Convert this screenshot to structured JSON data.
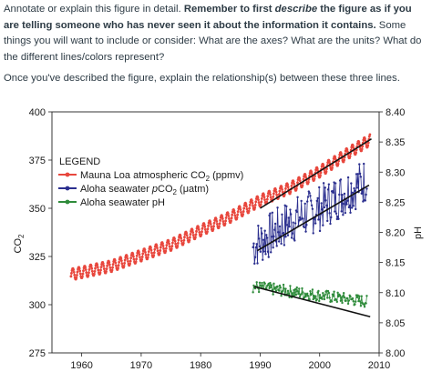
{
  "prompt": {
    "p1_a": "Annotate or explain this figure in detail. ",
    "p1_b1": "Remember to first ",
    "p1_b2": "describe",
    "p1_b3": " the figure as if you are telling someone who has never seen it about the information it contains.",
    "p1_c": " Some things you will want to include or consider:  What are the axes? What are the units? What do the different lines/colors represent?",
    "p2": "Once you've described the figure, explain the relationship(s) between these three lines."
  },
  "chart_data": {
    "type": "line",
    "title": "",
    "xlabel": "",
    "ylabel_left_main": "CO",
    "ylabel_left_sub": "2",
    "ylabel_right": "pH",
    "xlim": [
      1955,
      2010
    ],
    "ylim_left": [
      275,
      400
    ],
    "ylim_right": [
      8.0,
      8.4
    ],
    "x_ticks": [
      "1960",
      "1970",
      "1980",
      "1990",
      "2000",
      "2010"
    ],
    "y_left_ticks": [
      "275",
      "300",
      "325",
      "350",
      "375",
      "400"
    ],
    "y_right_ticks": [
      "8.00",
      "8.05",
      "8.10",
      "8.15",
      "8.20",
      "8.25",
      "8.30",
      "8.35",
      "8.40"
    ],
    "legend": {
      "title": "LEGEND",
      "placement": "upper-left",
      "entries": [
        {
          "pre": "Mauna Loa atmospheric CO",
          "sub": "2",
          "post": " (ppmv)"
        },
        {
          "pre": "Aloha seawater ",
          "ital": "p",
          "mid": "CO",
          "sub": "2",
          "post": " (μatm)"
        },
        {
          "pre": "Aloha seawater pH"
        }
      ]
    },
    "colors": {
      "mauna_loa": "#e8473d",
      "aloha_pco2": "#2b2f8f",
      "aloha_ph": "#2e8b3a",
      "trend": "#111111"
    },
    "series": [
      {
        "name": "Mauna Loa atmospheric CO2 (ppmv)",
        "axis": "left",
        "x_start": 1958.2,
        "x_end": 2008.5,
        "trend_points": [
          [
            1958,
            315.5
          ],
          [
            1965,
            320
          ],
          [
            1970,
            325.5
          ],
          [
            1975,
            331
          ],
          [
            1980,
            338.5
          ],
          [
            1985,
            345.5
          ],
          [
            1990,
            354
          ],
          [
            1995,
            360.5
          ],
          [
            2000,
            369
          ],
          [
            2005,
            379
          ],
          [
            2008.5,
            385.5
          ]
        ],
        "seasonal_amplitude": 3
      },
      {
        "name": "Aloha seawater pCO2 (μatm)",
        "axis": "left",
        "x_start": 1988.8,
        "x_end": 2008,
        "trend_points": [
          [
            1988.8,
            330
          ],
          [
            1995,
            343
          ],
          [
            2000,
            350
          ],
          [
            2008,
            365
          ]
        ],
        "scatter": 12
      },
      {
        "name": "Aloha seawater pH",
        "axis": "right",
        "x_start": 1988.8,
        "x_end": 2008,
        "trend_points": [
          [
            1988.8,
            8.11
          ],
          [
            2008,
            8.085
          ]
        ],
        "scatter": 0.01
      }
    ],
    "trend_lines": [
      {
        "axis": "left",
        "from": [
          1990,
          350
        ],
        "to": [
          2008.7,
          386
        ]
      },
      {
        "axis": "left",
        "from": [
          1989.5,
          328
        ],
        "to": [
          2008.3,
          362
        ]
      },
      {
        "axis": "right",
        "from": [
          1989,
          8.11
        ],
        "to": [
          2008.5,
          8.06
        ]
      }
    ]
  }
}
